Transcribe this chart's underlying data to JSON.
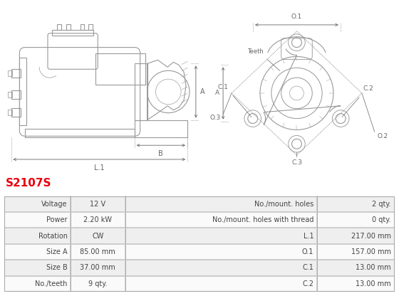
{
  "title": "S2107S",
  "title_color": "#e8000d",
  "bg_color": "#ffffff",
  "table_rows": [
    [
      "Voltage",
      "12 V",
      "No./mount. holes",
      "2 qty."
    ],
    [
      "Power",
      "2.20 kW",
      "No./mount. holes with thread",
      "0 qty."
    ],
    [
      "Rotation",
      "CW",
      "L.1",
      "217.00 mm"
    ],
    [
      "Size A",
      "85.00 mm",
      "O.1",
      "157.00 mm"
    ],
    [
      "Size B",
      "37.00 mm",
      "C.1",
      "13.00 mm"
    ],
    [
      "No./teeth",
      "9 qty.",
      "C.2",
      "13.00 mm"
    ]
  ],
  "diagram_color": "#999999",
  "dim_color": "#666666",
  "text_color": "#444444",
  "title_color_table": "#e8000d",
  "border_color": "#bbbbbb",
  "row_bg_alt": "#efefef",
  "row_bg_normal": "#fafafa"
}
